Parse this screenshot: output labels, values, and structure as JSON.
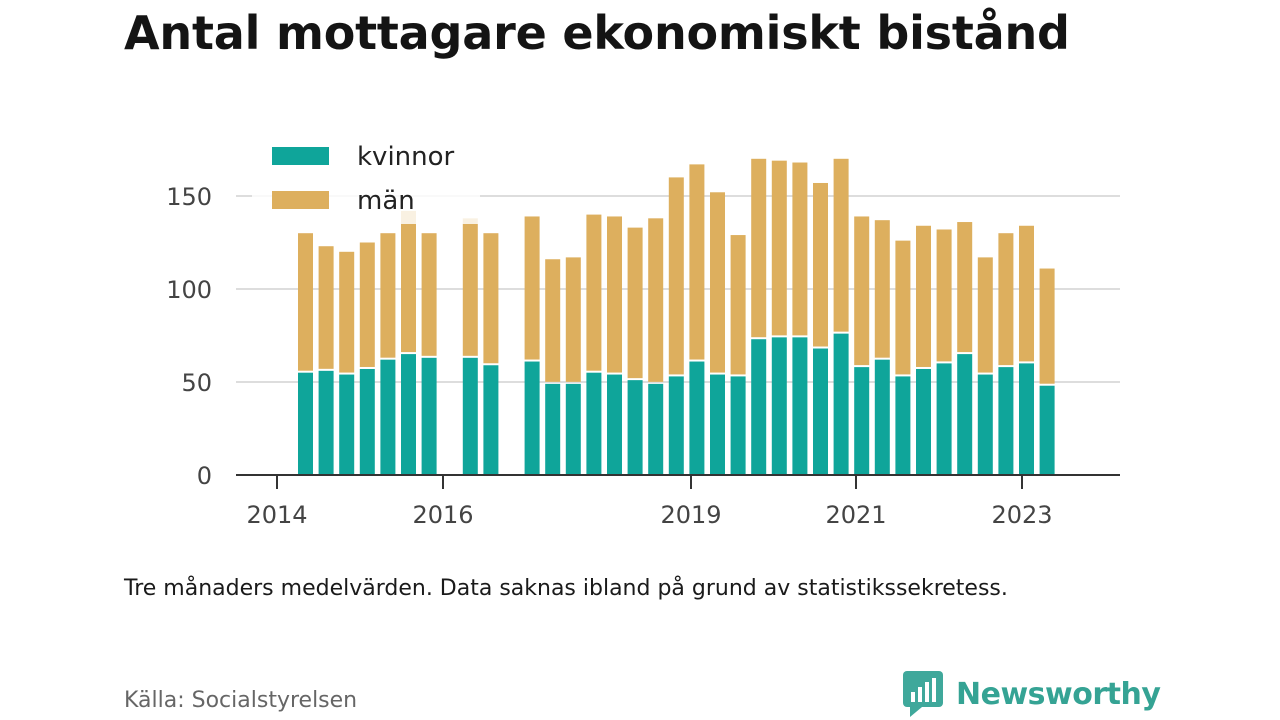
{
  "title": "Antal mottagare ekonomiskt bistånd",
  "note": "Tre månaders medelvärden. Data saknas ibland på grund av statistikssekretess.",
  "source": "Källa: Socialstyrelsen",
  "brand": {
    "name": "Newsworthy",
    "icon": "newsworthy-chat-bars-icon"
  },
  "colors": {
    "kvinnor": "#0fa59a",
    "man": "#ddaf5e",
    "grid": "#dddddd",
    "axis": "#333333"
  },
  "chart_data": {
    "type": "bar",
    "stacked": true,
    "xlabel": "",
    "ylabel": "",
    "ylim": [
      0,
      175
    ],
    "y_ticks": [
      0,
      50,
      100,
      150
    ],
    "x_tick_labels": [
      "2014",
      "2016",
      "2019",
      "2021",
      "2023"
    ],
    "grid": true,
    "legend_position": "top-left",
    "series": [
      {
        "name": "kvinnor",
        "values": [
          55,
          56,
          54,
          57,
          62,
          65,
          63,
          null,
          63,
          59,
          null,
          61,
          49,
          49,
          55,
          54,
          51,
          49,
          53,
          61,
          54,
          53,
          73,
          74,
          74,
          68,
          76,
          58,
          62,
          53,
          57,
          60,
          65,
          54,
          58,
          60,
          48
        ]
      },
      {
        "name": "män",
        "values": [
          75,
          67,
          66,
          68,
          68,
          77,
          67,
          null,
          75,
          71,
          null,
          78,
          67,
          68,
          85,
          85,
          82,
          89,
          107,
          106,
          98,
          76,
          97,
          95,
          94,
          89,
          94,
          81,
          75,
          73,
          77,
          72,
          71,
          63,
          72,
          74,
          63
        ]
      }
    ]
  }
}
